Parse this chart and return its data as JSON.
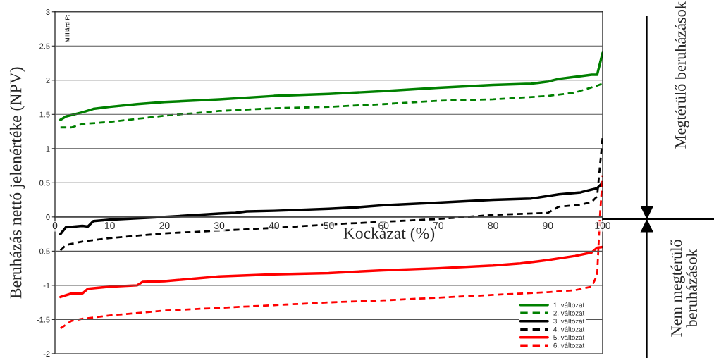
{
  "chart_data": {
    "type": "line",
    "xlabel": "Kockázat (%)",
    "ylabel": "Beruházás nettó jelenértéke (NPV)",
    "annotations": [
      "Milliárd Ft",
      "Megtérülő beruházások",
      "Nem megtérülő\nberuházások"
    ],
    "xlim": [
      0,
      100
    ],
    "xticks": [
      0,
      10,
      20,
      30,
      40,
      50,
      60,
      70,
      80,
      90,
      100
    ],
    "ylim": [
      -2,
      3
    ],
    "yticks": [
      -2,
      -1.5,
      -1,
      -0.5,
      0,
      0.5,
      1,
      1.5,
      2,
      2.5,
      3
    ],
    "grid": "y",
    "legend": "bottom right",
    "series": [
      {
        "name": "1. változat",
        "color": "#008000",
        "line_style": "solid",
        "x": [
          1,
          2,
          5,
          7,
          10,
          15,
          20,
          30,
          40,
          50,
          60,
          70,
          80,
          87,
          90,
          92,
          95,
          98,
          99,
          100
        ],
        "values": [
          1.42,
          1.47,
          1.53,
          1.58,
          1.61,
          1.65,
          1.68,
          1.72,
          1.77,
          1.8,
          1.84,
          1.89,
          1.93,
          1.95,
          1.98,
          2.02,
          2.05,
          2.08,
          2.08,
          2.4
        ]
      },
      {
        "name": "2. változat",
        "color": "#008000",
        "line_style": "dashed",
        "x": [
          1,
          3,
          5,
          10,
          20,
          30,
          40,
          50,
          60,
          70,
          80,
          90,
          95,
          99,
          100
        ],
        "values": [
          1.31,
          1.31,
          1.36,
          1.39,
          1.48,
          1.55,
          1.59,
          1.61,
          1.65,
          1.7,
          1.72,
          1.77,
          1.82,
          1.92,
          1.95
        ]
      },
      {
        "name": "3. változat",
        "color": "#000000",
        "line_style": "solid",
        "x": [
          1,
          2,
          5,
          6,
          7,
          10,
          15,
          20,
          30,
          33,
          35,
          40,
          50,
          55,
          60,
          70,
          80,
          87,
          92,
          96,
          98,
          99,
          100
        ],
        "values": [
          -0.25,
          -0.15,
          -0.13,
          -0.14,
          -0.06,
          -0.04,
          -0.02,
          0.0,
          0.05,
          0.06,
          0.08,
          0.09,
          0.12,
          0.14,
          0.17,
          0.21,
          0.25,
          0.27,
          0.33,
          0.36,
          0.4,
          0.42,
          0.5
        ]
      },
      {
        "name": "4. változat",
        "color": "#000000",
        "line_style": "dashed",
        "x": [
          1,
          2,
          5,
          10,
          20,
          30,
          40,
          50,
          60,
          70,
          80,
          90,
          92,
          96,
          98,
          99,
          100
        ],
        "values": [
          -0.49,
          -0.41,
          -0.36,
          -0.31,
          -0.24,
          -0.2,
          -0.16,
          -0.11,
          -0.07,
          -0.03,
          0.03,
          0.06,
          0.15,
          0.18,
          0.22,
          0.3,
          1.17
        ]
      },
      {
        "name": "5. változat",
        "color": "#ff0000",
        "line_style": "solid",
        "x": [
          1,
          3,
          5,
          6,
          10,
          15,
          16,
          20,
          30,
          40,
          50,
          60,
          70,
          80,
          85,
          90,
          95,
          98,
          99,
          100
        ],
        "values": [
          -1.17,
          -1.12,
          -1.12,
          -1.05,
          -1.02,
          -1.0,
          -0.95,
          -0.94,
          -0.87,
          -0.84,
          -0.82,
          -0.78,
          -0.75,
          -0.71,
          -0.68,
          -0.63,
          -0.57,
          -0.52,
          -0.45,
          -0.44
        ]
      },
      {
        "name": "6. változat",
        "color": "#ff0000",
        "line_style": "dashed",
        "x": [
          1,
          3,
          5,
          10,
          20,
          30,
          40,
          50,
          60,
          70,
          80,
          90,
          95,
          98,
          99,
          99.5,
          100
        ],
        "values": [
          -1.63,
          -1.52,
          -1.49,
          -1.44,
          -1.37,
          -1.33,
          -1.29,
          -1.25,
          -1.22,
          -1.18,
          -1.14,
          -1.1,
          -1.07,
          -1.02,
          -0.85,
          0.0,
          0.6
        ]
      }
    ]
  }
}
